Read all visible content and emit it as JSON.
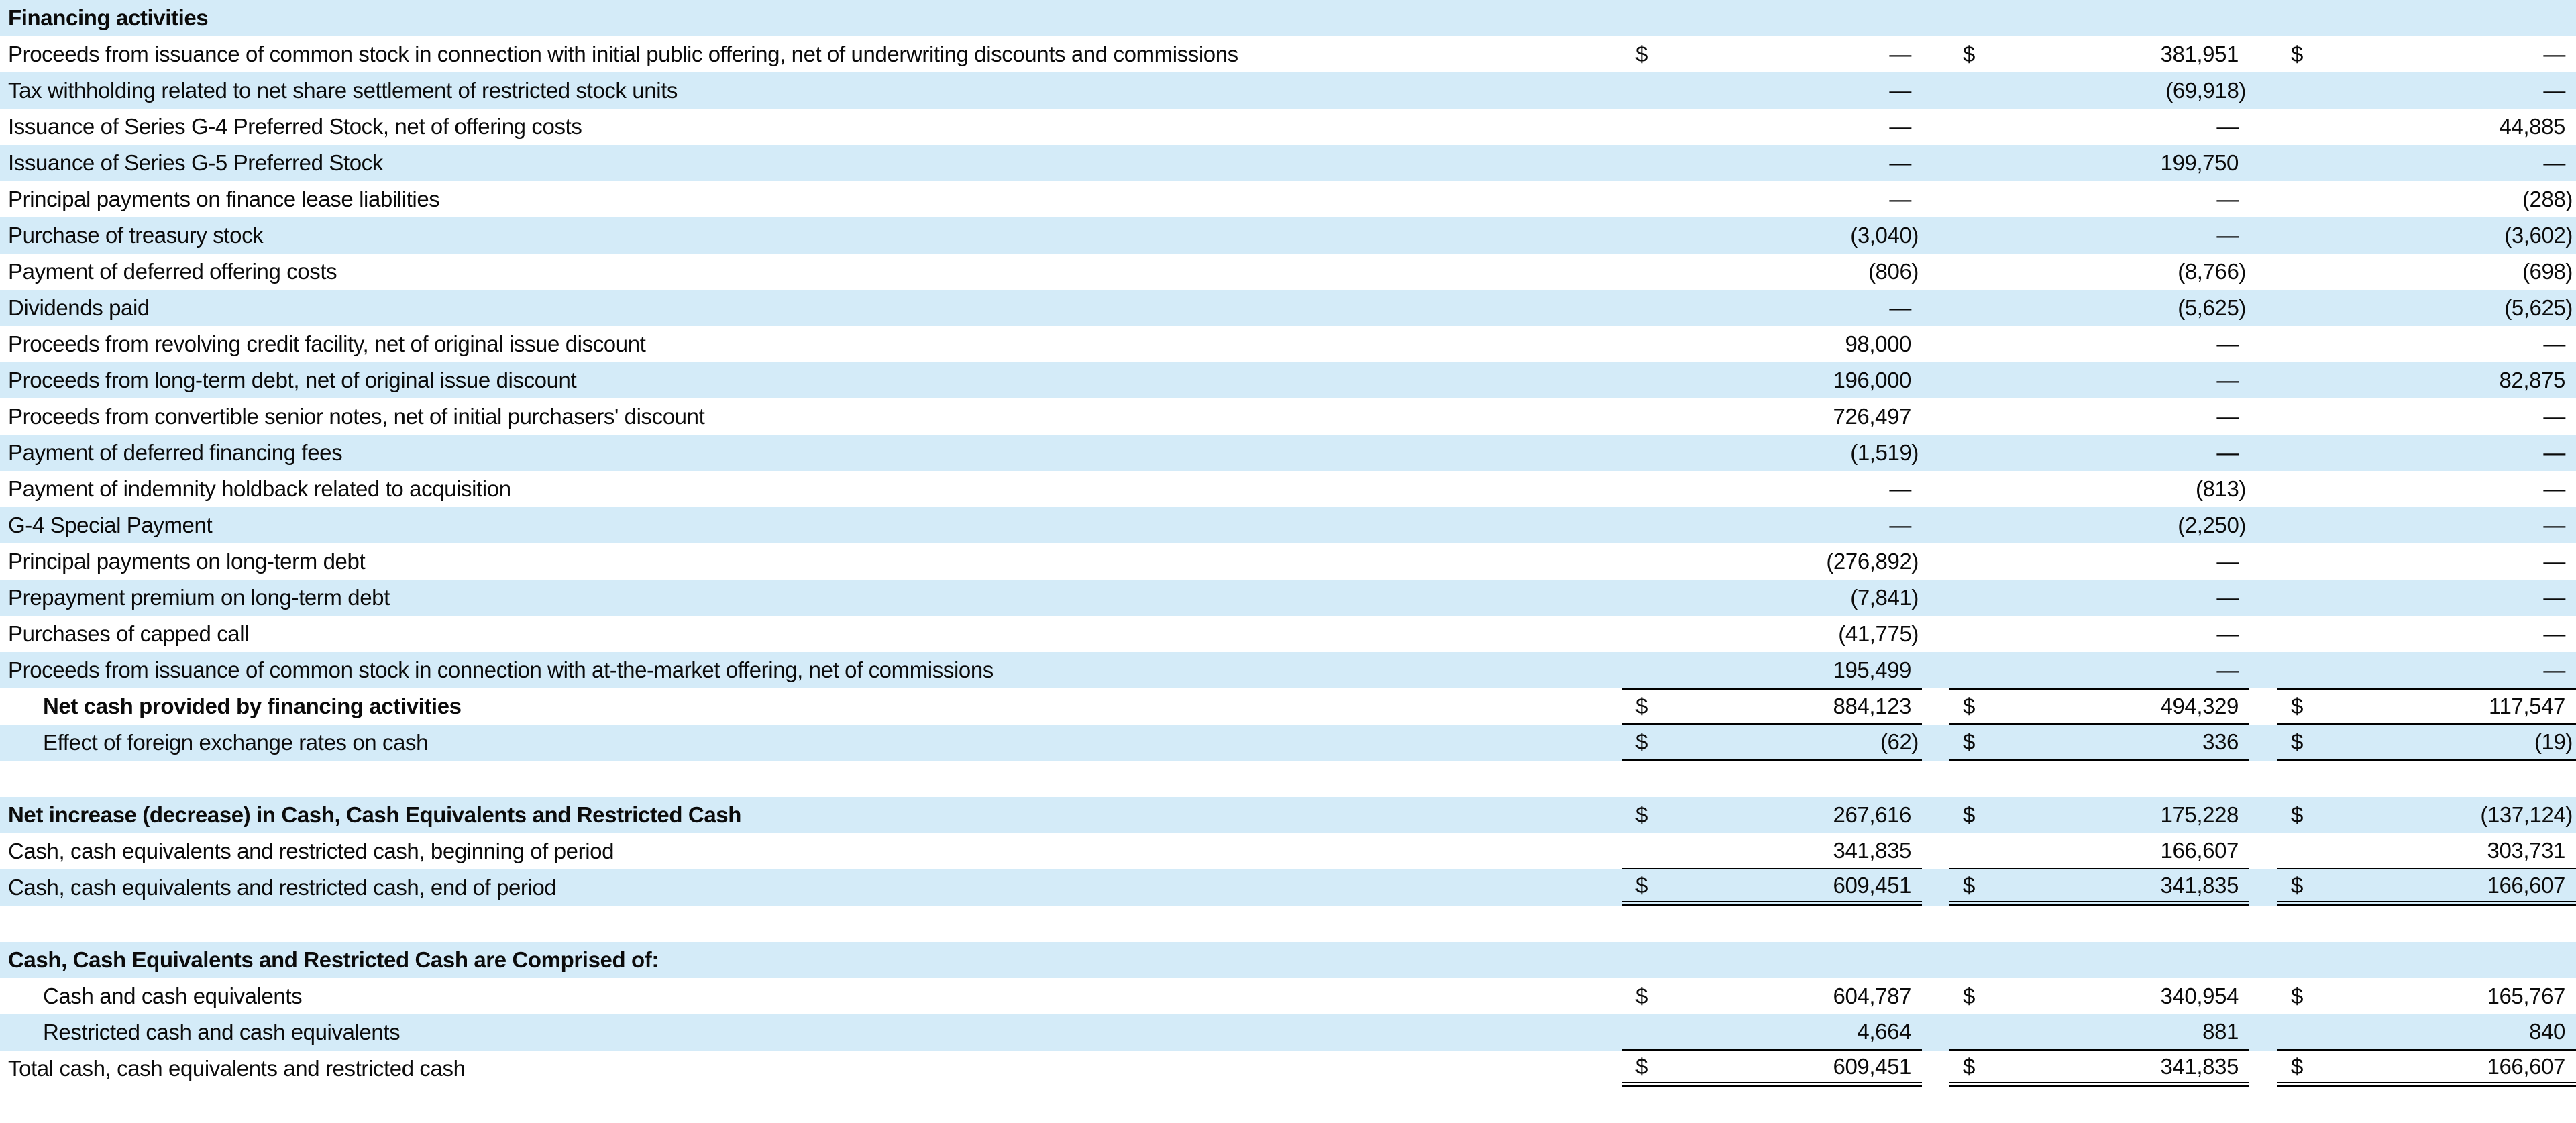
{
  "colors": {
    "row_alt": "#d4ebf8",
    "text": "#0b0b0b",
    "rule": "#000000"
  },
  "table": {
    "title": "Financing activities section of cash flow statement",
    "currency_symbol": "$",
    "value_columns": 3,
    "rows": [
      {
        "label": "Financing activities",
        "bold": true,
        "indent": false,
        "bg": "blue",
        "cells": null
      },
      {
        "label": "Proceeds from issuance of common stock in connection with initial public offering, net of underwriting discounts and commissions",
        "bold": false,
        "indent": false,
        "bg": "white",
        "cells": [
          {
            "dollar": true,
            "value": "—"
          },
          {
            "dollar": true,
            "value": "381,951"
          },
          {
            "dollar": true,
            "value": "—"
          }
        ]
      },
      {
        "label": "Tax withholding related to net share settlement of restricted stock units",
        "bold": false,
        "indent": false,
        "bg": "blue",
        "cells": [
          {
            "dollar": false,
            "value": "—"
          },
          {
            "dollar": false,
            "value": "(69,918)"
          },
          {
            "dollar": false,
            "value": "—"
          }
        ]
      },
      {
        "label": "Issuance of Series G-4 Preferred Stock, net of offering costs",
        "bold": false,
        "indent": false,
        "bg": "white",
        "cells": [
          {
            "dollar": false,
            "value": "—"
          },
          {
            "dollar": false,
            "value": "—"
          },
          {
            "dollar": false,
            "value": "44,885"
          }
        ]
      },
      {
        "label": "Issuance of Series G-5 Preferred Stock",
        "bold": false,
        "indent": false,
        "bg": "blue",
        "cells": [
          {
            "dollar": false,
            "value": "—"
          },
          {
            "dollar": false,
            "value": "199,750"
          },
          {
            "dollar": false,
            "value": "—"
          }
        ]
      },
      {
        "label": "Principal payments on finance lease liabilities",
        "bold": false,
        "indent": false,
        "bg": "white",
        "cells": [
          {
            "dollar": false,
            "value": "—"
          },
          {
            "dollar": false,
            "value": "—"
          },
          {
            "dollar": false,
            "value": "(288)"
          }
        ]
      },
      {
        "label": "Purchase of treasury stock",
        "bold": false,
        "indent": false,
        "bg": "blue",
        "cells": [
          {
            "dollar": false,
            "value": "(3,040)"
          },
          {
            "dollar": false,
            "value": "—"
          },
          {
            "dollar": false,
            "value": "(3,602)"
          }
        ]
      },
      {
        "label": "Payment of deferred offering costs",
        "bold": false,
        "indent": false,
        "bg": "white",
        "cells": [
          {
            "dollar": false,
            "value": "(806)"
          },
          {
            "dollar": false,
            "value": "(8,766)"
          },
          {
            "dollar": false,
            "value": "(698)"
          }
        ]
      },
      {
        "label": "Dividends paid",
        "bold": false,
        "indent": false,
        "bg": "blue",
        "cells": [
          {
            "dollar": false,
            "value": "—"
          },
          {
            "dollar": false,
            "value": "(5,625)"
          },
          {
            "dollar": false,
            "value": "(5,625)"
          }
        ]
      },
      {
        "label": "Proceeds from revolving credit facility, net of original issue discount",
        "bold": false,
        "indent": false,
        "bg": "white",
        "cells": [
          {
            "dollar": false,
            "value": "98,000"
          },
          {
            "dollar": false,
            "value": "—"
          },
          {
            "dollar": false,
            "value": "—"
          }
        ]
      },
      {
        "label": "Proceeds from long-term debt, net of original issue discount",
        "bold": false,
        "indent": false,
        "bg": "blue",
        "cells": [
          {
            "dollar": false,
            "value": "196,000"
          },
          {
            "dollar": false,
            "value": "—"
          },
          {
            "dollar": false,
            "value": "82,875"
          }
        ]
      },
      {
        "label": "Proceeds from convertible senior notes, net of initial purchasers' discount",
        "bold": false,
        "indent": false,
        "bg": "white",
        "cells": [
          {
            "dollar": false,
            "value": "726,497"
          },
          {
            "dollar": false,
            "value": "—"
          },
          {
            "dollar": false,
            "value": "—"
          }
        ]
      },
      {
        "label": "Payment of deferred financing fees",
        "bold": false,
        "indent": false,
        "bg": "blue",
        "cells": [
          {
            "dollar": false,
            "value": "(1,519)"
          },
          {
            "dollar": false,
            "value": "—"
          },
          {
            "dollar": false,
            "value": "—"
          }
        ]
      },
      {
        "label": "Payment of indemnity holdback related to acquisition",
        "bold": false,
        "indent": false,
        "bg": "white",
        "cells": [
          {
            "dollar": false,
            "value": "—"
          },
          {
            "dollar": false,
            "value": "(813)"
          },
          {
            "dollar": false,
            "value": "—"
          }
        ]
      },
      {
        "label": "G-4 Special Payment",
        "bold": false,
        "indent": false,
        "bg": "blue",
        "cells": [
          {
            "dollar": false,
            "value": "—"
          },
          {
            "dollar": false,
            "value": "(2,250)"
          },
          {
            "dollar": false,
            "value": "—"
          }
        ]
      },
      {
        "label": "Principal payments on long-term debt",
        "bold": false,
        "indent": false,
        "bg": "white",
        "cells": [
          {
            "dollar": false,
            "value": "(276,892)"
          },
          {
            "dollar": false,
            "value": "—"
          },
          {
            "dollar": false,
            "value": "—"
          }
        ]
      },
      {
        "label": "Prepayment premium on long-term debt",
        "bold": false,
        "indent": false,
        "bg": "blue",
        "cells": [
          {
            "dollar": false,
            "value": "(7,841)"
          },
          {
            "dollar": false,
            "value": "—"
          },
          {
            "dollar": false,
            "value": "—"
          }
        ]
      },
      {
        "label": "Purchases of capped call",
        "bold": false,
        "indent": false,
        "bg": "white",
        "cells": [
          {
            "dollar": false,
            "value": "(41,775)"
          },
          {
            "dollar": false,
            "value": "—"
          },
          {
            "dollar": false,
            "value": "—"
          }
        ]
      },
      {
        "label": "Proceeds from issuance of common stock in connection with at-the-market offering, net of commissions",
        "bold": false,
        "indent": false,
        "bg": "blue",
        "cells": [
          {
            "dollar": false,
            "value": "195,499"
          },
          {
            "dollar": false,
            "value": "—"
          },
          {
            "dollar": false,
            "value": "—"
          }
        ]
      },
      {
        "label": "Net cash provided by financing activities",
        "bold": true,
        "indent": true,
        "bg": "white",
        "border_top": "single",
        "border_bottom": "single",
        "cells": [
          {
            "dollar": true,
            "value": "884,123"
          },
          {
            "dollar": true,
            "value": "494,329"
          },
          {
            "dollar": true,
            "value": "117,547"
          }
        ]
      },
      {
        "label": "Effect of foreign exchange rates on cash",
        "bold": false,
        "indent": true,
        "bg": "blue",
        "border_bottom": "single",
        "cells": [
          {
            "dollar": true,
            "value": "(62)"
          },
          {
            "dollar": true,
            "value": "336"
          },
          {
            "dollar": true,
            "value": "(19)"
          }
        ]
      },
      {
        "label": "",
        "bold": false,
        "indent": false,
        "bg": "white",
        "cells": null
      },
      {
        "label": "Net increase (decrease) in Cash, Cash Equivalents and Restricted Cash",
        "bold": true,
        "indent": false,
        "bg": "blue",
        "cells": [
          {
            "dollar": true,
            "value": "267,616"
          },
          {
            "dollar": true,
            "value": "175,228"
          },
          {
            "dollar": true,
            "value": "(137,124)"
          }
        ]
      },
      {
        "label": "Cash, cash equivalents and restricted cash, beginning of period",
        "bold": false,
        "indent": false,
        "bg": "white",
        "border_bottom": "single",
        "cells": [
          {
            "dollar": false,
            "value": "341,835"
          },
          {
            "dollar": false,
            "value": "166,607"
          },
          {
            "dollar": false,
            "value": "303,731"
          }
        ]
      },
      {
        "label": "Cash, cash equivalents and restricted cash, end of period",
        "bold": false,
        "indent": false,
        "bg": "blue",
        "border_bottom": "double",
        "cells": [
          {
            "dollar": true,
            "value": "609,451"
          },
          {
            "dollar": true,
            "value": "341,835"
          },
          {
            "dollar": true,
            "value": "166,607"
          }
        ]
      },
      {
        "label": "",
        "bold": false,
        "indent": false,
        "bg": "white",
        "cells": null
      },
      {
        "label": "Cash, Cash Equivalents and Restricted Cash are Comprised of:",
        "bold": true,
        "indent": false,
        "bg": "blue",
        "cells": null
      },
      {
        "label": "Cash and cash equivalents",
        "bold": false,
        "indent": true,
        "bg": "white",
        "cells": [
          {
            "dollar": true,
            "value": "604,787"
          },
          {
            "dollar": true,
            "value": "340,954"
          },
          {
            "dollar": true,
            "value": "165,767"
          }
        ]
      },
      {
        "label": "Restricted cash and cash equivalents",
        "bold": false,
        "indent": true,
        "bg": "blue",
        "border_bottom": "single",
        "cells": [
          {
            "dollar": false,
            "value": "4,664"
          },
          {
            "dollar": false,
            "value": "881"
          },
          {
            "dollar": false,
            "value": "840"
          }
        ]
      },
      {
        "label": "Total cash, cash equivalents and restricted cash",
        "bold": false,
        "indent": false,
        "bg": "white",
        "border_bottom": "double",
        "cells": [
          {
            "dollar": true,
            "value": "609,451"
          },
          {
            "dollar": true,
            "value": "341,835"
          },
          {
            "dollar": true,
            "value": "166,607"
          }
        ]
      },
      {
        "label": "",
        "bold": false,
        "indent": false,
        "bg": "white",
        "cells": null
      }
    ]
  }
}
